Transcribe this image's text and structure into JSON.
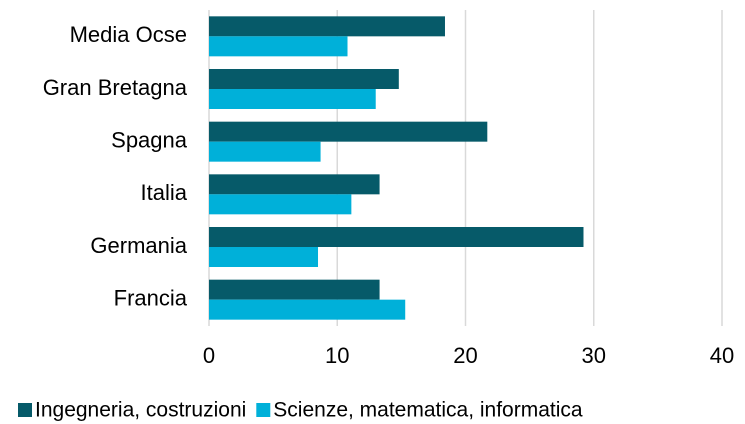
{
  "chart_data": {
    "type": "bar",
    "orientation": "horizontal",
    "categories": [
      "Media Ocse",
      "Gran Bretagna",
      "Spagna",
      "Italia",
      "Germania",
      "Francia"
    ],
    "series": [
      {
        "name": "Ingegneria, costruzioni",
        "color": "#065a69",
        "values": [
          18.4,
          14.8,
          21.7,
          13.3,
          29.2,
          13.3
        ]
      },
      {
        "name": "Scienze, matematica, informatica",
        "color": "#00b0d9",
        "values": [
          10.8,
          13.0,
          8.7,
          11.1,
          8.5,
          15.3
        ]
      }
    ],
    "xlim": [
      0,
      40
    ],
    "xticks": [
      0,
      10,
      20,
      30,
      40
    ],
    "grid": true,
    "legend": "bottom"
  }
}
